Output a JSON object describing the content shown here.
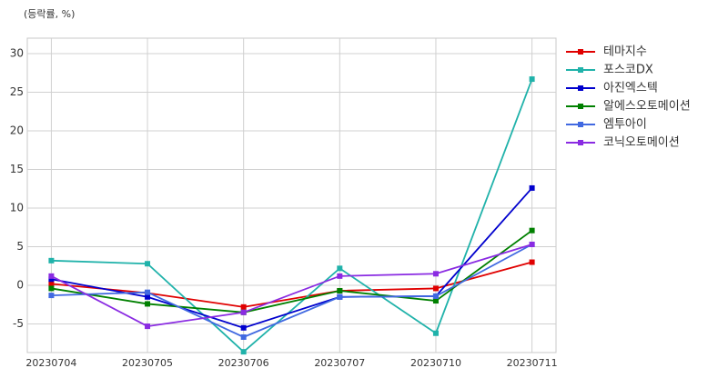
{
  "chart_data": {
    "type": "line",
    "ylabel": "(등락률, %)",
    "categories": [
      "20230704",
      "20230705",
      "20230706",
      "20230707",
      "20230710",
      "20230711"
    ],
    "series": [
      {
        "name": "테마지수",
        "color": "#e00000",
        "values": [
          0.2,
          -1.0,
          -2.8,
          -0.7,
          -0.4,
          3.0
        ]
      },
      {
        "name": "포스코DX",
        "color": "#20b2aa",
        "values": [
          3.2,
          2.8,
          -8.6,
          2.2,
          -6.2,
          26.7
        ]
      },
      {
        "name": "아진엑스텍",
        "color": "#0000cd",
        "values": [
          0.8,
          -1.5,
          -5.5,
          -1.5,
          -1.4,
          12.6
        ]
      },
      {
        "name": "알에스오토메이션",
        "color": "#008000",
        "values": [
          -0.4,
          -2.4,
          -3.5,
          -0.7,
          -2.0,
          7.1
        ]
      },
      {
        "name": "엠투아이",
        "color": "#4169e1",
        "values": [
          -1.3,
          -0.9,
          -6.7,
          -1.5,
          -1.4,
          5.3
        ]
      },
      {
        "name": "코닉오토메이션",
        "color": "#8a2be2",
        "values": [
          1.2,
          -5.3,
          -3.5,
          1.2,
          1.5,
          5.3
        ]
      }
    ],
    "ylim": [
      -8.7,
      32
    ],
    "yticks": [
      -5,
      0,
      5,
      10,
      15,
      20,
      25,
      30
    ],
    "grid": true,
    "legend": "right"
  }
}
